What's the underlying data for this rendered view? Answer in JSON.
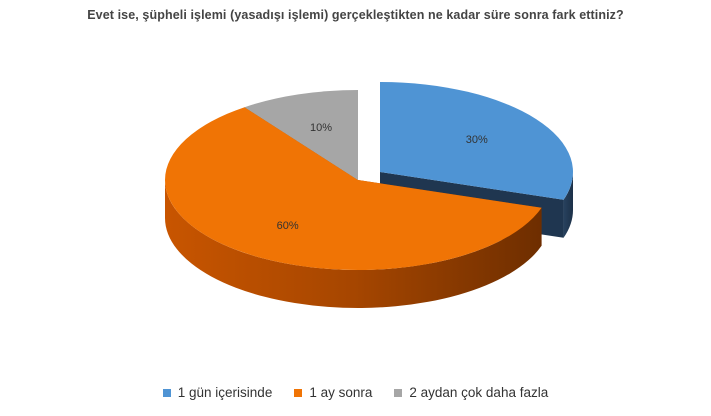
{
  "chart_data": {
    "type": "pie",
    "title": "Evet ise, şüpheli işlemi (yasadışı işlemi) gerçekleştikten ne kadar süre sonra fark ettiniz?",
    "slices": [
      {
        "label": "1 gün içerisinde",
        "value": 30,
        "display": "30%",
        "color": "#4f94d4",
        "exploded": true
      },
      {
        "label": "1 ay sonra",
        "value": 60,
        "display": "60%",
        "color": "#f07405",
        "exploded": false
      },
      {
        "label": "2 aydan çok daha fazla",
        "value": 10,
        "display": "10%",
        "color": "#a6a6a6",
        "exploded": false
      }
    ],
    "legend_position": "bottom",
    "style": "3d"
  }
}
